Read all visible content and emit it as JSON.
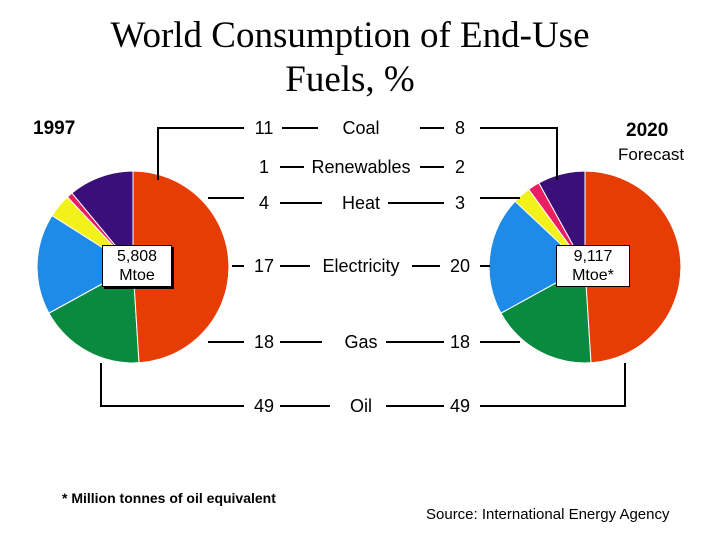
{
  "title_line1": "World Consumption of End-Use",
  "title_line2": "Fuels, %",
  "left_year": "1997",
  "right_year": "2020",
  "right_note": "Forecast",
  "left_total_line1": "5,808",
  "left_total_line2": "Mtoe",
  "right_total_line1": "9,117",
  "right_total_line2": "Mtoe*",
  "footnote": "* Million tonnes of oil equivalent",
  "source": "Source: International Energy Agency",
  "colors": {
    "Coal": "#3b0f7a",
    "Renewables": "#ea1e63",
    "Heat": "#f2f21a",
    "Electricity": "#1f8be8",
    "Gas": "#0a8a3e",
    "Oil": "#e83c05"
  },
  "chart_data": {
    "type": "pie",
    "categories": [
      "Coal",
      "Renewables",
      "Heat",
      "Electricity",
      "Gas",
      "Oil"
    ],
    "series": [
      {
        "name": "1997",
        "values": [
          11,
          1,
          4,
          17,
          18,
          49
        ]
      },
      {
        "name": "2020",
        "values": [
          8,
          2,
          3,
          20,
          18,
          49
        ]
      }
    ]
  }
}
